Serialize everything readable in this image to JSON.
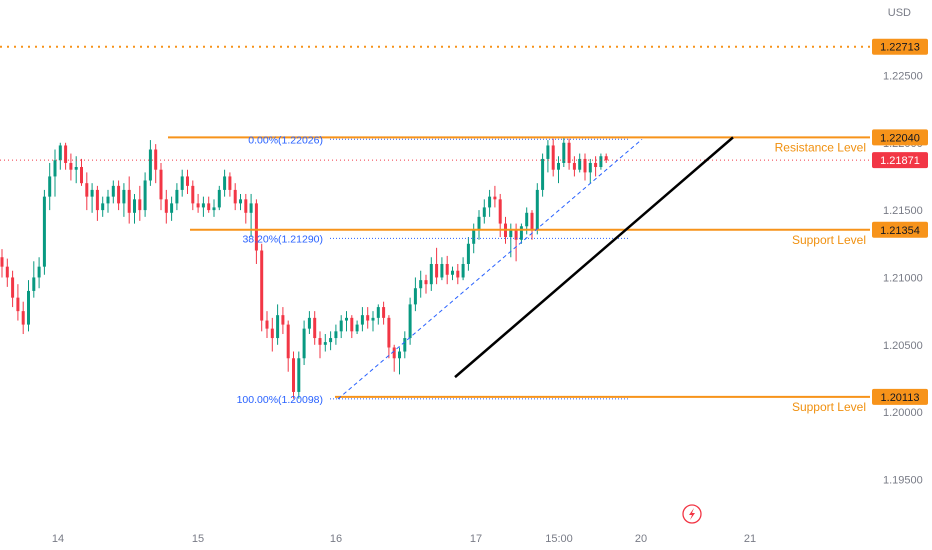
{
  "currency": "USD",
  "colors": {
    "up": "#089981",
    "down": "#f23645",
    "level": "#f7931a",
    "fib": "#2962ff",
    "last_price": "#f23645"
  },
  "chart_data": {
    "type": "candlestick",
    "y_ticks": [
      "1.22500",
      "1.22000",
      "1.21500",
      "1.21000",
      "1.20500",
      "1.20000",
      "1.19500"
    ],
    "ylim": [
      1.1925,
      1.2306
    ],
    "x_ticks": [
      "14",
      "15",
      "16",
      "17",
      "15:00",
      "20",
      "21"
    ],
    "price_tags": [
      {
        "label": "1.22713",
        "value": 1.22713,
        "style": "level"
      },
      {
        "label": "1.22040",
        "value": 1.2204,
        "style": "level"
      },
      {
        "label": "1.21871",
        "value": 1.21871,
        "style": "last"
      },
      {
        "label": "1.21354",
        "value": 1.21354,
        "style": "level"
      },
      {
        "label": "1.20113",
        "value": 1.20113,
        "style": "level"
      }
    ],
    "levels": [
      {
        "value": 1.2204,
        "label": "Resistance Level"
      },
      {
        "value": 1.21354,
        "label": "Support Level"
      },
      {
        "value": 1.20113,
        "label": "Support Level"
      }
    ],
    "dotted_level": 1.22713,
    "last_price": 1.21871,
    "fib": [
      {
        "label": "0.00%(1.22026)",
        "value": 1.22026
      },
      {
        "label": "38.20%(1.21290)",
        "value": 1.2129
      },
      {
        "label": "100.00%(1.20098)",
        "value": 1.20098
      }
    ],
    "trendline": {
      "from": 1.2026,
      "to": 1.2204
    },
    "candles": [
      [
        1.2115,
        1.2121,
        1.21,
        1.2108
      ],
      [
        1.2108,
        1.2114,
        1.2093,
        1.21
      ],
      [
        1.21,
        1.2105,
        1.2078,
        1.2085
      ],
      [
        1.2085,
        1.2095,
        1.2068,
        1.2075
      ],
      [
        1.2075,
        1.2082,
        1.2058,
        1.2065
      ],
      [
        1.2065,
        1.2098,
        1.206,
        1.209
      ],
      [
        1.209,
        1.2112,
        1.2085,
        1.21
      ],
      [
        1.21,
        1.2115,
        1.2092,
        1.2108
      ],
      [
        1.2108,
        1.2165,
        1.2102,
        1.216
      ],
      [
        1.216,
        1.2185,
        1.215,
        1.2175
      ],
      [
        1.2175,
        1.2195,
        1.216,
        1.2187
      ],
      [
        1.2187,
        1.22,
        1.218,
        1.2198
      ],
      [
        1.2198,
        1.22,
        1.218,
        1.2185
      ],
      [
        1.2185,
        1.2192,
        1.2172,
        1.218
      ],
      [
        1.218,
        1.219,
        1.217,
        1.2182
      ],
      [
        1.2182,
        1.2188,
        1.2168,
        1.217
      ],
      [
        1.217,
        1.2178,
        1.215,
        1.216
      ],
      [
        1.216,
        1.217,
        1.2148,
        1.2165
      ],
      [
        1.2165,
        1.2168,
        1.2142,
        1.215
      ],
      [
        1.215,
        1.216,
        1.2145,
        1.2155
      ],
      [
        1.2155,
        1.2165,
        1.2148,
        1.216
      ],
      [
        1.216,
        1.2172,
        1.2155,
        1.2168
      ],
      [
        1.2168,
        1.2172,
        1.215,
        1.2155
      ],
      [
        1.2155,
        1.217,
        1.2145,
        1.2165
      ],
      [
        1.2165,
        1.2175,
        1.214,
        1.2148
      ],
      [
        1.2148,
        1.2162,
        1.214,
        1.2158
      ],
      [
        1.2158,
        1.2168,
        1.2142,
        1.215
      ],
      [
        1.215,
        1.2178,
        1.2145,
        1.2172
      ],
      [
        1.2172,
        1.2202,
        1.2168,
        1.2195
      ],
      [
        1.2195,
        1.2199,
        1.217,
        1.218
      ],
      [
        1.218,
        1.2185,
        1.215,
        1.2158
      ],
      [
        1.2158,
        1.2165,
        1.214,
        1.2148
      ],
      [
        1.2148,
        1.216,
        1.2142,
        1.2155
      ],
      [
        1.2155,
        1.217,
        1.215,
        1.2165
      ],
      [
        1.2165,
        1.218,
        1.216,
        1.2175
      ],
      [
        1.2175,
        1.218,
        1.2162,
        1.2168
      ],
      [
        1.2168,
        1.2172,
        1.215,
        1.2155
      ],
      [
        1.2155,
        1.2162,
        1.2148,
        1.2152
      ],
      [
        1.2152,
        1.216,
        1.2145,
        1.2155
      ],
      [
        1.2155,
        1.216,
        1.2148,
        1.215
      ],
      [
        1.215,
        1.2158,
        1.2145,
        1.2152
      ],
      [
        1.2152,
        1.2168,
        1.215,
        1.2165
      ],
      [
        1.2165,
        1.218,
        1.216,
        1.2175
      ],
      [
        1.2175,
        1.2178,
        1.216,
        1.2165
      ],
      [
        1.2165,
        1.217,
        1.215,
        1.2155
      ],
      [
        1.2155,
        1.2162,
        1.215,
        1.2158
      ],
      [
        1.2158,
        1.2162,
        1.214,
        1.2148
      ],
      [
        1.2148,
        1.2162,
        1.213,
        1.2155
      ],
      [
        1.2155,
        1.2158,
        1.211,
        1.212
      ],
      [
        1.212,
        1.2125,
        1.206,
        1.2068
      ],
      [
        1.2068,
        1.2075,
        1.2055,
        1.2062
      ],
      [
        1.2062,
        1.207,
        1.2045,
        1.2055
      ],
      [
        1.2055,
        1.208,
        1.205,
        1.2072
      ],
      [
        1.2072,
        1.2078,
        1.2058,
        1.2065
      ],
      [
        1.2065,
        1.2068,
        1.203,
        1.204
      ],
      [
        1.204,
        1.2045,
        1.201,
        1.2015
      ],
      [
        1.2015,
        1.2045,
        1.201,
        1.204
      ],
      [
        1.204,
        1.2068,
        1.2035,
        1.2062
      ],
      [
        1.2062,
        1.2075,
        1.2058,
        1.207
      ],
      [
        1.207,
        1.2075,
        1.205,
        1.2055
      ],
      [
        1.2055,
        1.206,
        1.204,
        1.205
      ],
      [
        1.205,
        1.2058,
        1.2045,
        1.2052
      ],
      [
        1.2052,
        1.206,
        1.2046,
        1.2055
      ],
      [
        1.2055,
        1.2065,
        1.205,
        1.206
      ],
      [
        1.206,
        1.2072,
        1.2055,
        1.2068
      ],
      [
        1.2068,
        1.2075,
        1.206,
        1.207
      ],
      [
        1.207,
        1.2072,
        1.2055,
        1.206
      ],
      [
        1.206,
        1.2068,
        1.2058,
        1.2065
      ],
      [
        1.2065,
        1.2078,
        1.206,
        1.2072
      ],
      [
        1.2072,
        1.2078,
        1.2062,
        1.2068
      ],
      [
        1.2068,
        1.2075,
        1.206,
        1.207
      ],
      [
        1.207,
        1.208,
        1.2065,
        1.2078
      ],
      [
        1.2078,
        1.2082,
        1.2065,
        1.207
      ],
      [
        1.207,
        1.2072,
        1.204,
        1.2048
      ],
      [
        1.2048,
        1.205,
        1.203,
        1.204
      ],
      [
        1.204,
        1.2048,
        1.2028,
        1.2045
      ],
      [
        1.2045,
        1.206,
        1.204,
        1.2055
      ],
      [
        1.2055,
        1.2085,
        1.205,
        1.208
      ],
      [
        1.208,
        1.21,
        1.2075,
        1.2092
      ],
      [
        1.2092,
        1.2105,
        1.2085,
        1.2098
      ],
      [
        1.2098,
        1.2102,
        1.2088,
        1.2095
      ],
      [
        1.2095,
        1.2115,
        1.209,
        1.211
      ],
      [
        1.211,
        1.2122,
        1.2095,
        1.21
      ],
      [
        1.21,
        1.2115,
        1.2098,
        1.211
      ],
      [
        1.211,
        1.2116,
        1.2095,
        1.2102
      ],
      [
        1.2102,
        1.2108,
        1.2098,
        1.2105
      ],
      [
        1.2105,
        1.211,
        1.2095,
        1.21
      ],
      [
        1.21,
        1.2115,
        1.2098,
        1.211
      ],
      [
        1.211,
        1.213,
        1.2105,
        1.2125
      ],
      [
        1.2125,
        1.214,
        1.2118,
        1.2135
      ],
      [
        1.2135,
        1.215,
        1.2128,
        1.2145
      ],
      [
        1.2145,
        1.2158,
        1.214,
        1.2152
      ],
      [
        1.2152,
        1.2165,
        1.2145,
        1.216
      ],
      [
        1.216,
        1.2168,
        1.2152,
        1.2158
      ],
      [
        1.2158,
        1.2162,
        1.213,
        1.214
      ],
      [
        1.214,
        1.2145,
        1.2125,
        1.213
      ],
      [
        1.213,
        1.214,
        1.2115,
        1.2135
      ],
      [
        1.2135,
        1.214,
        1.2112,
        1.2128
      ],
      [
        1.2128,
        1.214,
        1.2125,
        1.2138
      ],
      [
        1.2138,
        1.2152,
        1.2132,
        1.2148
      ],
      [
        1.2148,
        1.215,
        1.2128,
        1.2135
      ],
      [
        1.2135,
        1.217,
        1.2132,
        1.2165
      ],
      [
        1.2165,
        1.2192,
        1.216,
        1.2188
      ],
      [
        1.2188,
        1.2202,
        1.2178,
        1.2198
      ],
      [
        1.2198,
        1.2203,
        1.2175,
        1.218
      ],
      [
        1.218,
        1.219,
        1.217,
        1.2185
      ],
      [
        1.2185,
        1.2204,
        1.2182,
        1.22
      ],
      [
        1.22,
        1.2203,
        1.218,
        1.2185
      ],
      [
        1.2185,
        1.219,
        1.2175,
        1.218
      ],
      [
        1.218,
        1.2192,
        1.2178,
        1.2188
      ],
      [
        1.2188,
        1.2192,
        1.2172,
        1.2178
      ],
      [
        1.2178,
        1.2188,
        1.217,
        1.2185
      ],
      [
        1.2185,
        1.219,
        1.2175,
        1.2182
      ],
      [
        1.2182,
        1.2192,
        1.218,
        1.219
      ],
      [
        1.219,
        1.2192,
        1.2185,
        1.2187
      ]
    ]
  }
}
